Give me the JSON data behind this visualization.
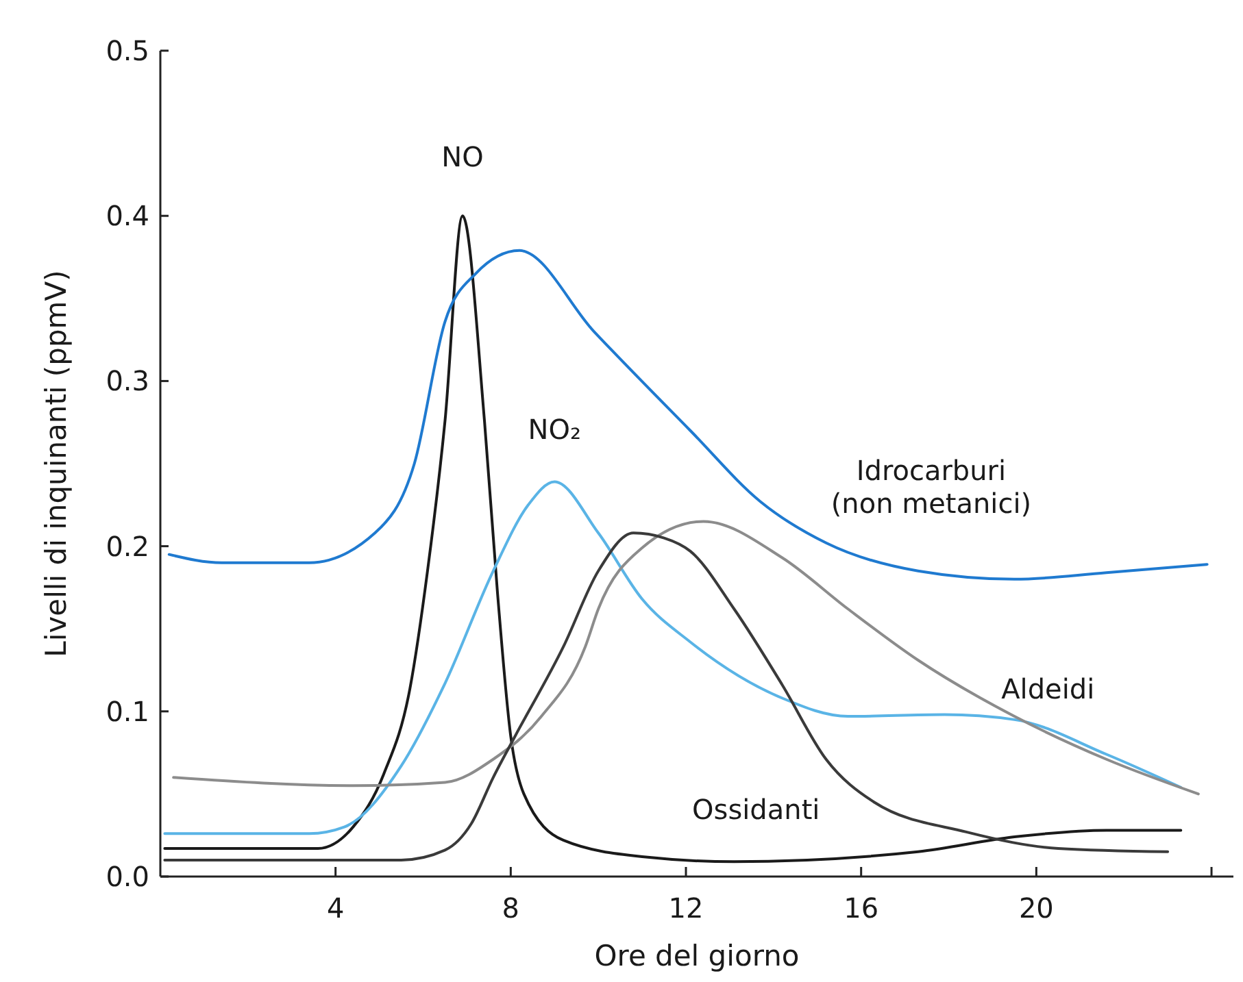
{
  "chart_data": {
    "type": "line",
    "xlabel": "Ore del giorno",
    "ylabel": "Livelli di inquinanti (ppmV)",
    "xlim": [
      0,
      24.5
    ],
    "ylim": [
      0,
      0.5
    ],
    "xticks": [
      4,
      8,
      12,
      16,
      20,
      {
        "value": 24,
        "label": null
      }
    ],
    "yticks": [
      {
        "value": 0,
        "label": "0.0"
      },
      0.1,
      0.2,
      0.3,
      0.4,
      0.5
    ],
    "grid": false,
    "marker": "none",
    "line_style": "solid",
    "series": [
      {
        "name": "NO",
        "color": "#1a1a1a",
        "x": [
          0.1,
          3.6,
          4.4,
          5.1,
          5.7,
          6.1,
          6.5,
          6.9,
          7.4,
          7.7,
          8.0,
          8.3,
          9.2,
          11,
          13.1,
          17.3,
          19.5,
          21.6,
          23.3
        ],
        "values": [
          0.017,
          0.017,
          0.03,
          0.062,
          0.114,
          0.185,
          0.276,
          0.4,
          0.276,
          0.171,
          0.085,
          0.05,
          0.022,
          0.012,
          0.009,
          0.015,
          0.024,
          0.028,
          0.028
        ]
      },
      {
        "name": "NO₂",
        "color": "#5ab4e6",
        "x": [
          0.1,
          3.4,
          4.2,
          5.5,
          6.5,
          7.6,
          8.4,
          9.0,
          10,
          11,
          12.1,
          14.2,
          15.7,
          17.9,
          19.5,
          21.6,
          23.3
        ],
        "values": [
          0.026,
          0.026,
          0.03,
          0.067,
          0.117,
          0.185,
          0.225,
          0.239,
          0.208,
          0.168,
          0.142,
          0.108,
          0.097,
          0.098,
          0.095,
          0.074,
          0.054
        ]
      },
      {
        "name": "Idrocarburi\n(non metanici)",
        "color": "#1f7ad0",
        "x": [
          0.2,
          1.4,
          3.4,
          4.9,
          5.8,
          6.5,
          7.2,
          8.2,
          9.9,
          12.1,
          13.7,
          15.2,
          17.3,
          19.5,
          21.6,
          23.9
        ],
        "values": [
          0.195,
          0.19,
          0.19,
          0.208,
          0.25,
          0.336,
          0.365,
          0.379,
          0.33,
          0.27,
          0.227,
          0.202,
          0.185,
          0.18,
          0.184,
          0.189
        ]
      },
      {
        "name": "Aldeidi",
        "color": "#8c8c8c",
        "x": [
          0.3,
          4.4,
          6.5,
          7.6,
          8.7,
          9.7,
          10,
          11,
          12.4,
          14.2,
          15.7,
          17.3,
          19.5,
          21.6,
          23.7
        ],
        "values": [
          0.06,
          0.055,
          0.057,
          0.071,
          0.097,
          0.139,
          0.162,
          0.199,
          0.215,
          0.193,
          0.162,
          0.131,
          0.097,
          0.071,
          0.05
        ]
      },
      {
        "name": "Ossidanti",
        "color": "#3a3a3a",
        "x": [
          0.1,
          5.5,
          6.5,
          7.1,
          7.6,
          8.1,
          9.2,
          10,
          10.8,
          11.5,
          12.1,
          13.1,
          14.2,
          15.2,
          16.3,
          18.4,
          20.5,
          23
        ],
        "values": [
          0.01,
          0.01,
          0.016,
          0.032,
          0.06,
          0.085,
          0.139,
          0.185,
          0.208,
          0.205,
          0.197,
          0.162,
          0.116,
          0.071,
          0.045,
          0.027,
          0.017,
          0.015
        ]
      }
    ]
  }
}
